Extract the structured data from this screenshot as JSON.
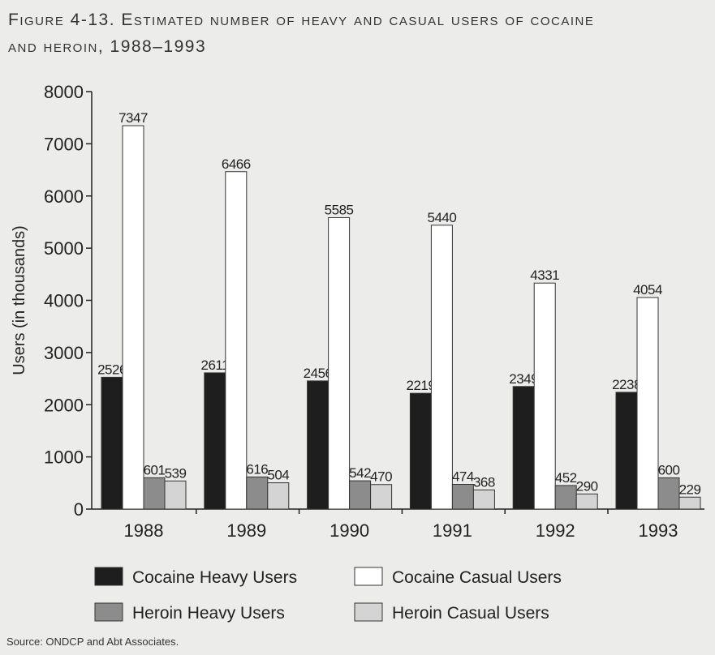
{
  "figure": {
    "title_line1": "Figure 4-13. Estimated number of heavy and casual users of cocaine",
    "title_line2": "and heroin, 1988–1993",
    "source": "Source: ONDCP and Abt Associates."
  },
  "chart_data": {
    "type": "bar",
    "title": "Figure 4-13. Estimated number of heavy and casual users of cocaine and heroin, 1988–1993",
    "xlabel": "",
    "ylabel": "Users (in thousands)",
    "ylim": [
      0,
      8000
    ],
    "yticks": [
      0,
      1000,
      2000,
      3000,
      4000,
      5000,
      6000,
      7000,
      8000
    ],
    "grid": false,
    "legend_position": "bottom",
    "categories": [
      "1988",
      "1989",
      "1990",
      "1991",
      "1992",
      "1993"
    ],
    "series": [
      {
        "name": "Cocaine Heavy Users",
        "values": [
          2526,
          2611,
          2456,
          2219,
          2349,
          2238
        ],
        "color": "#1e1e1e"
      },
      {
        "name": "Cocaine Casual Users",
        "values": [
          7347,
          6466,
          5585,
          5440,
          4331,
          4054
        ],
        "color": "#ffffff"
      },
      {
        "name": "Heroin Heavy Users",
        "values": [
          601,
          616,
          542,
          474,
          452,
          600
        ],
        "color": "#8c8c8c"
      },
      {
        "name": "Heroin Casual Users",
        "values": [
          539,
          504,
          470,
          368,
          290,
          229
        ],
        "color": "#d4d4d4"
      }
    ]
  }
}
